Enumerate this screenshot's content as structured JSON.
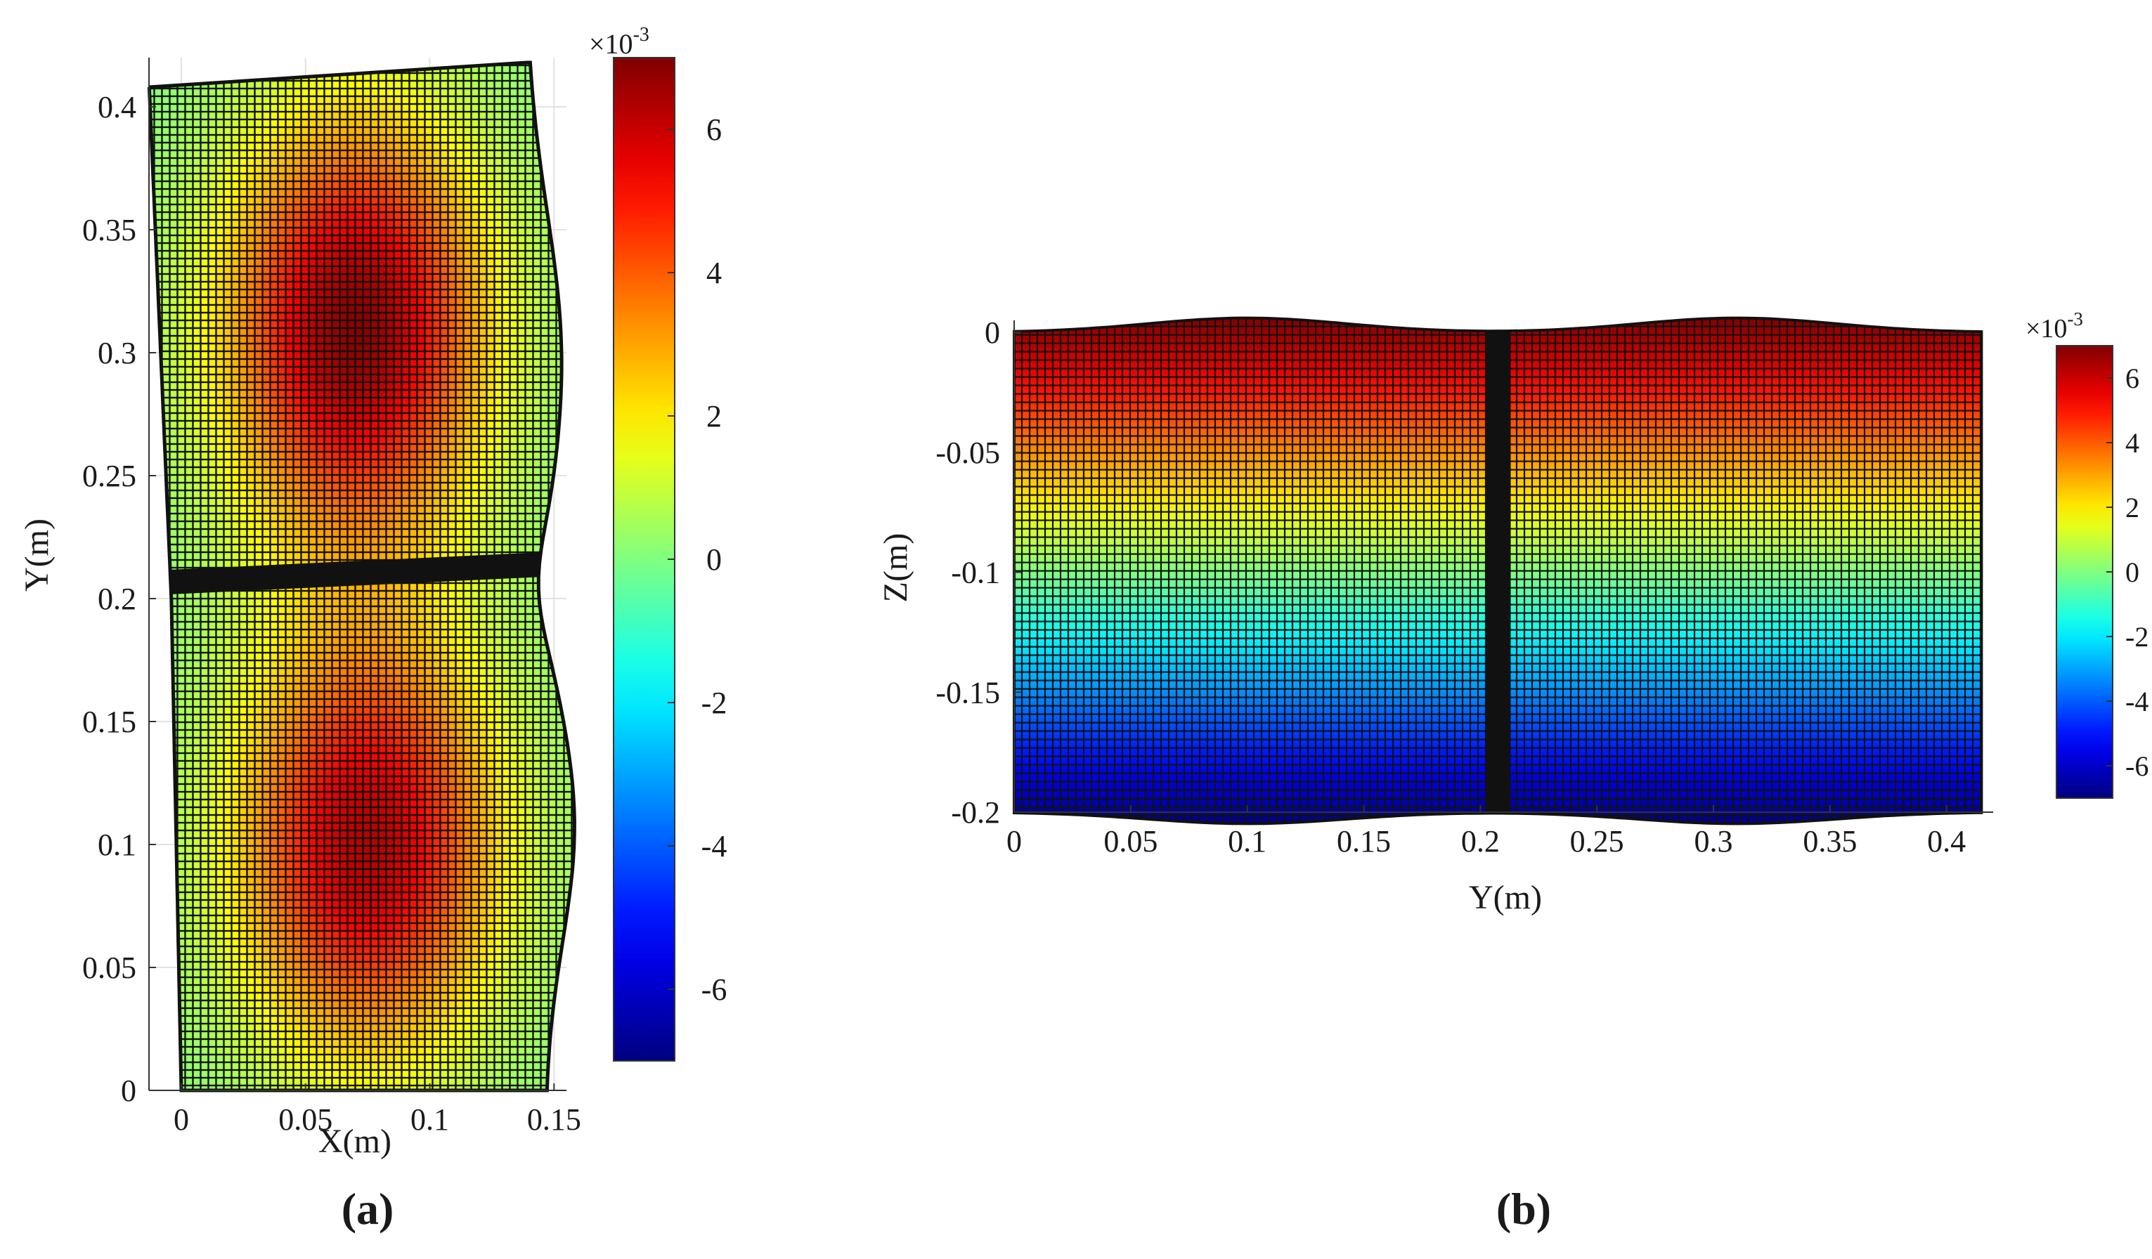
{
  "chart_data": [
    {
      "type": "heatmap",
      "panel_label": "(a)",
      "xlabel": "X(m)",
      "ylabel": "Y(m)",
      "xlim": [
        -0.013,
        0.155
      ],
      "ylim": [
        0,
        0.42
      ],
      "xticks": [
        0,
        0.05,
        0.1,
        0.15
      ],
      "xtick_labels": [
        "0",
        "0.05",
        "0.1",
        "0.15"
      ],
      "yticks": [
        0,
        0.05,
        0.1,
        0.15,
        0.2,
        0.25,
        0.3,
        0.35,
        0.4
      ],
      "ytick_labels": [
        "0",
        "0.05",
        "0.1",
        "0.15",
        "0.2",
        "0.25",
        "0.3",
        "0.35",
        "0.4"
      ],
      "grid": true,
      "peaks": [
        {
          "x": 0.07,
          "y": 0.31,
          "value": 0.0068
        },
        {
          "x": 0.075,
          "y": 0.1,
          "value": 0.0062
        }
      ],
      "seam": {
        "y": 0.207,
        "x_from": -0.004,
        "x_to": 0.147
      },
      "colorbar": {
        "range": [
          -0.007,
          0.007
        ],
        "multiplier": "×10",
        "exponent": "-3",
        "ticks": [
          -6,
          -4,
          -2,
          0,
          2,
          4,
          6
        ],
        "tick_labels": [
          "-6",
          "-4",
          "-2",
          "0",
          "2",
          "4",
          "6"
        ]
      }
    },
    {
      "type": "heatmap",
      "panel_label": "(b)",
      "xlabel": "Y(m)",
      "ylabel": "Z(m)",
      "xlim": [
        0,
        0.42
      ],
      "ylim": [
        -0.2,
        0.005
      ],
      "xticks": [
        0,
        0.05,
        0.1,
        0.15,
        0.2,
        0.25,
        0.3,
        0.35,
        0.4
      ],
      "xtick_labels": [
        "0",
        "0.05",
        "0.1",
        "0.15",
        "0.2",
        "0.25",
        "0.3",
        "0.35",
        "0.4"
      ],
      "yticks": [
        0,
        -0.05,
        -0.1,
        -0.15,
        -0.2
      ],
      "ytick_labels": [
        "0",
        "-0.05",
        "-0.1",
        "-0.15",
        "-0.2"
      ],
      "grid": false,
      "surface_extent": {
        "y_from": 0,
        "y_to": 0.415,
        "z_from": -0.2,
        "z_to": 0
      },
      "value_range_along_z": {
        "top": 0.007,
        "bottom": -0.007
      },
      "bulge_centers_y": [
        0.1,
        0.31
      ],
      "seam": {
        "y": 0.207
      },
      "colorbar": {
        "range": [
          -0.007,
          0.007
        ],
        "multiplier": "×10",
        "exponent": "-3",
        "ticks": [
          -6,
          -4,
          -2,
          0,
          2,
          4,
          6
        ],
        "tick_labels": [
          "-6",
          "-4",
          "-2",
          "0",
          "2",
          "4",
          "6"
        ]
      }
    }
  ]
}
